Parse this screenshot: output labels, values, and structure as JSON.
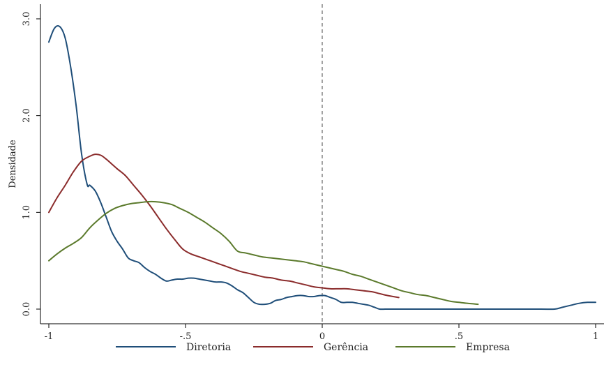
{
  "chart_data": {
    "type": "line",
    "title": "",
    "xlabel": "",
    "ylabel": "Densidade",
    "xlim": [
      -1,
      1
    ],
    "ylim": [
      0,
      3
    ],
    "x_ticks": [
      -1,
      -0.5,
      0,
      0.5,
      1
    ],
    "x_tick_labels": [
      "-1",
      "-.5",
      "0",
      ".5",
      "1"
    ],
    "y_ticks": [
      0,
      1,
      2,
      3
    ],
    "y_tick_labels": [
      "0.0",
      "1.0",
      "2.0",
      "3.0"
    ],
    "reference_line": {
      "x": 0,
      "style": "dashed",
      "color": "#8c8c8c"
    },
    "grid": false,
    "legend_position": "bottom",
    "series": [
      {
        "name": "Diretoria",
        "color": "#1f4e79",
        "x": [
          -1,
          -0.98,
          -0.96,
          -0.94,
          -0.92,
          -0.9,
          -0.88,
          -0.86,
          -0.85,
          -0.83,
          -0.81,
          -0.79,
          -0.77,
          -0.75,
          -0.73,
          -0.71,
          -0.69,
          -0.67,
          -0.65,
          -0.63,
          -0.61,
          -0.59,
          -0.57,
          -0.55,
          -0.53,
          -0.51,
          -0.49,
          -0.47,
          -0.45,
          -0.43,
          -0.41,
          -0.39,
          -0.37,
          -0.35,
          -0.33,
          -0.31,
          -0.29,
          -0.27,
          -0.25,
          -0.23,
          -0.21,
          -0.19,
          -0.17,
          -0.15,
          -0.13,
          -0.11,
          -0.09,
          -0.07,
          -0.05,
          -0.03,
          -0.01,
          0.01,
          0.03,
          0.05,
          0.07,
          0.09,
          0.11,
          0.13,
          0.15,
          0.17,
          0.19,
          0.21,
          0.23,
          0.25,
          0.27,
          0.29,
          0.31,
          0.33,
          0.35,
          0.4,
          0.5,
          0.6,
          0.7,
          0.8,
          0.85,
          0.88,
          0.91,
          0.94,
          0.97,
          1.0
        ],
        "y": [
          2.76,
          2.9,
          2.92,
          2.8,
          2.5,
          2.1,
          1.6,
          1.29,
          1.28,
          1.22,
          1.1,
          0.95,
          0.8,
          0.7,
          0.62,
          0.53,
          0.5,
          0.48,
          0.43,
          0.39,
          0.36,
          0.32,
          0.29,
          0.3,
          0.31,
          0.31,
          0.32,
          0.32,
          0.31,
          0.3,
          0.29,
          0.28,
          0.28,
          0.27,
          0.24,
          0.2,
          0.17,
          0.12,
          0.07,
          0.05,
          0.05,
          0.06,
          0.09,
          0.1,
          0.12,
          0.13,
          0.14,
          0.14,
          0.13,
          0.13,
          0.14,
          0.14,
          0.12,
          0.1,
          0.07,
          0.07,
          0.07,
          0.06,
          0.05,
          0.04,
          0.02,
          0.0,
          0.0,
          0.0,
          0.0,
          0.0,
          0.0,
          0.0,
          0.0,
          0.0,
          0.0,
          0.0,
          0.0,
          0.0,
          0.0,
          0.02,
          0.04,
          0.06,
          0.07,
          0.07
        ]
      },
      {
        "name": "Gerência",
        "color": "#8b2c2c",
        "x": [
          -1,
          -0.97,
          -0.94,
          -0.91,
          -0.88,
          -0.85,
          -0.83,
          -0.81,
          -0.79,
          -0.77,
          -0.75,
          -0.72,
          -0.69,
          -0.66,
          -0.63,
          -0.6,
          -0.57,
          -0.54,
          -0.51,
          -0.48,
          -0.45,
          -0.42,
          -0.39,
          -0.36,
          -0.33,
          -0.3,
          -0.27,
          -0.24,
          -0.21,
          -0.18,
          -0.15,
          -0.12,
          -0.09,
          -0.06,
          -0.03,
          0.0,
          0.03,
          0.06,
          0.09,
          0.12,
          0.15,
          0.18,
          0.21,
          0.24,
          0.28
        ],
        "y": [
          1.0,
          1.15,
          1.28,
          1.42,
          1.53,
          1.58,
          1.6,
          1.59,
          1.55,
          1.5,
          1.45,
          1.38,
          1.28,
          1.18,
          1.07,
          0.95,
          0.83,
          0.72,
          0.62,
          0.57,
          0.54,
          0.51,
          0.48,
          0.45,
          0.42,
          0.39,
          0.37,
          0.35,
          0.33,
          0.32,
          0.3,
          0.29,
          0.27,
          0.25,
          0.23,
          0.22,
          0.21,
          0.21,
          0.21,
          0.2,
          0.19,
          0.18,
          0.16,
          0.14,
          0.12
        ]
      },
      {
        "name": "Empresa",
        "color": "#5b7a2c",
        "x": [
          -1,
          -0.97,
          -0.94,
          -0.91,
          -0.88,
          -0.85,
          -0.82,
          -0.79,
          -0.76,
          -0.73,
          -0.7,
          -0.67,
          -0.64,
          -0.61,
          -0.58,
          -0.55,
          -0.52,
          -0.49,
          -0.46,
          -0.43,
          -0.4,
          -0.37,
          -0.34,
          -0.31,
          -0.28,
          -0.25,
          -0.22,
          -0.19,
          -0.16,
          -0.13,
          -0.1,
          -0.07,
          -0.04,
          -0.01,
          0.02,
          0.05,
          0.08,
          0.11,
          0.14,
          0.17,
          0.2,
          0.23,
          0.26,
          0.29,
          0.32,
          0.35,
          0.38,
          0.41,
          0.44,
          0.47,
          0.5,
          0.53,
          0.57
        ],
        "y": [
          0.5,
          0.57,
          0.63,
          0.68,
          0.74,
          0.84,
          0.92,
          0.99,
          1.04,
          1.07,
          1.09,
          1.1,
          1.11,
          1.11,
          1.1,
          1.08,
          1.04,
          1.0,
          0.95,
          0.9,
          0.84,
          0.78,
          0.7,
          0.6,
          0.58,
          0.56,
          0.54,
          0.53,
          0.52,
          0.51,
          0.5,
          0.49,
          0.47,
          0.45,
          0.43,
          0.41,
          0.39,
          0.36,
          0.34,
          0.31,
          0.28,
          0.25,
          0.22,
          0.19,
          0.17,
          0.15,
          0.14,
          0.12,
          0.1,
          0.08,
          0.07,
          0.06,
          0.05
        ]
      }
    ]
  }
}
